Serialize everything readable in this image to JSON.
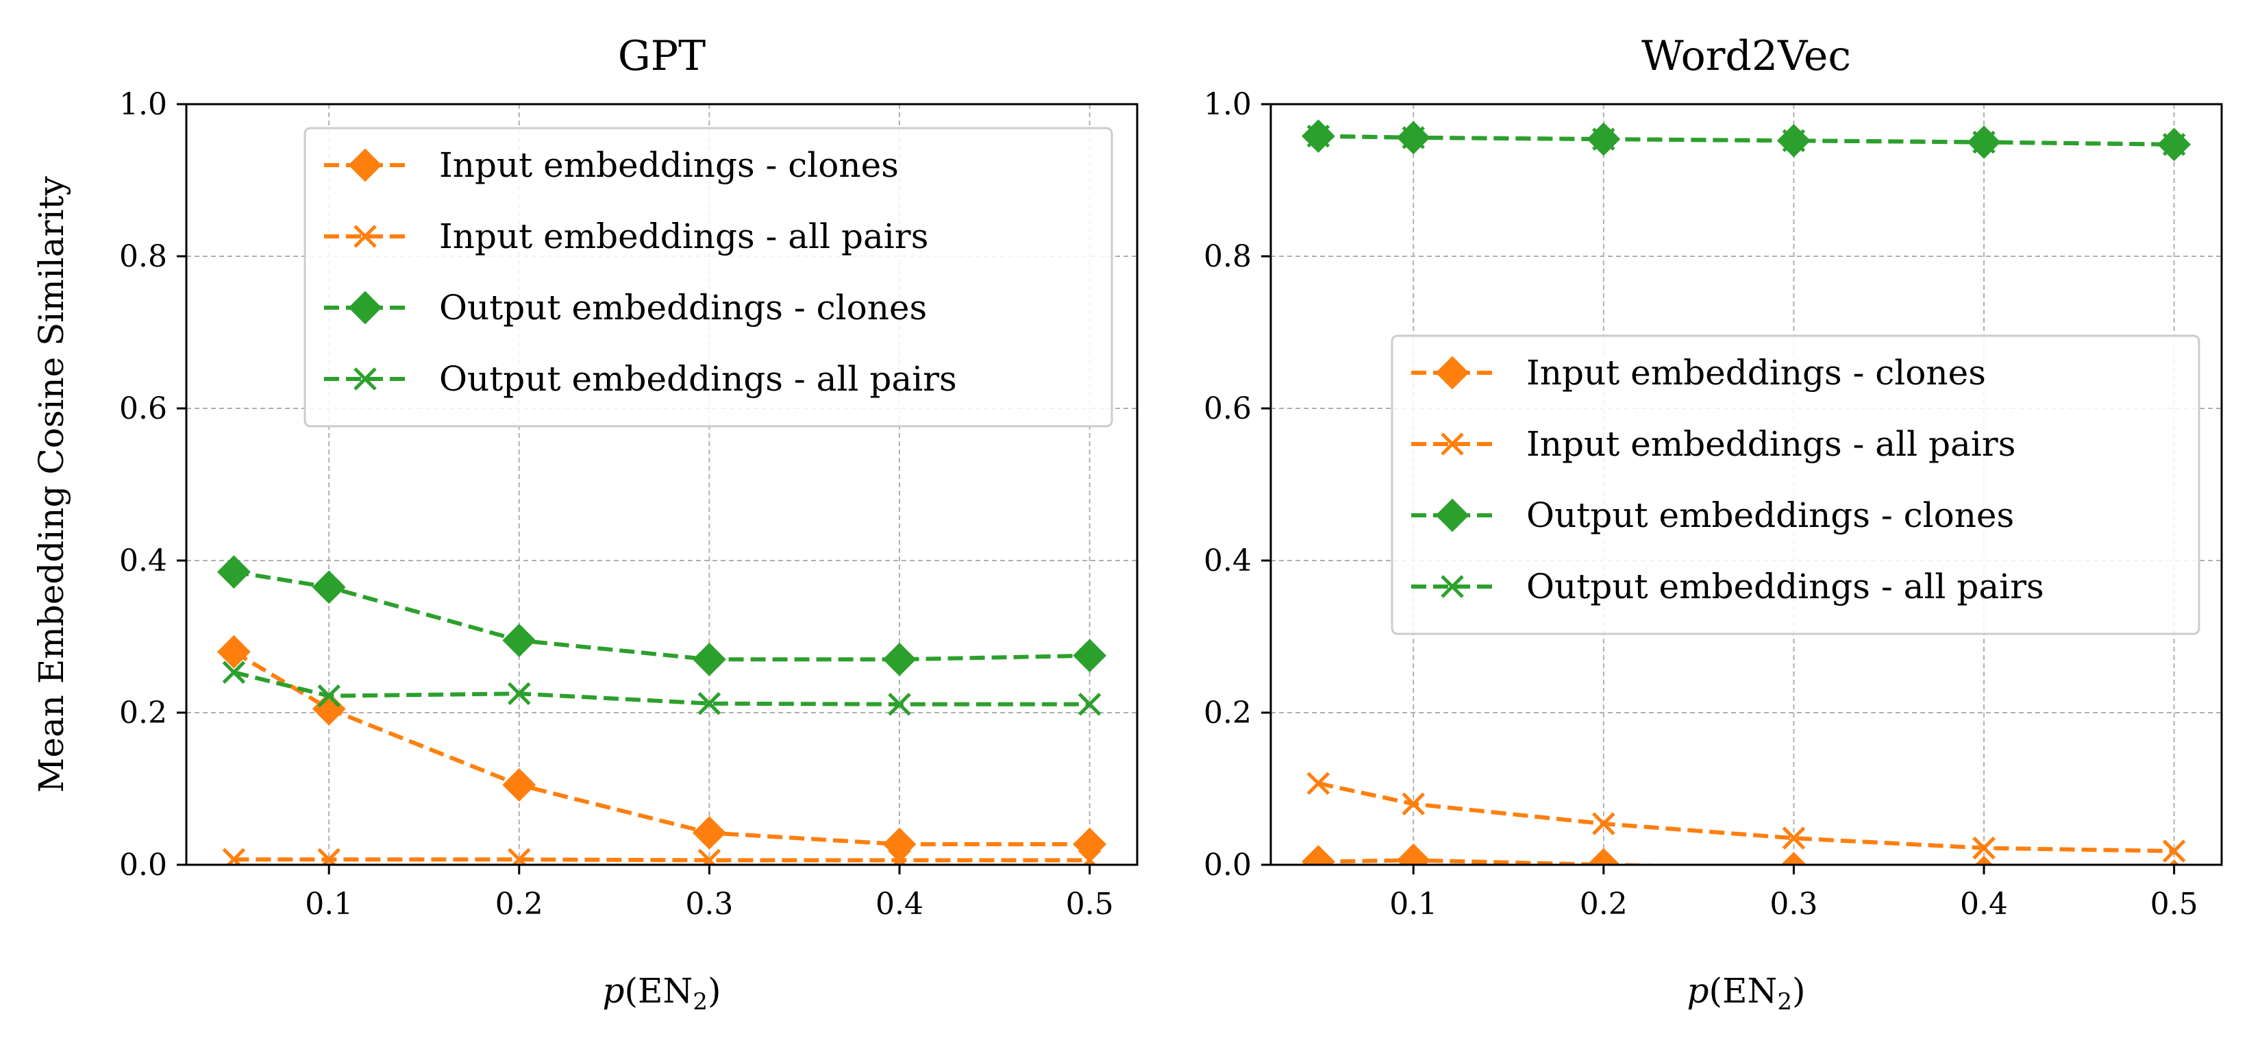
{
  "colors": {
    "orange": "#ff7f0e",
    "green": "#2ca02c"
  },
  "chart_data": [
    {
      "type": "line",
      "title": "GPT",
      "xlabel": "p(EN2)",
      "ylabel": "Mean Embedding Cosine Similarity",
      "x": [
        0.05,
        0.1,
        0.2,
        0.3,
        0.4,
        0.5
      ],
      "xlim": [
        0.025,
        0.525
      ],
      "ylim": [
        0.0,
        1.0
      ],
      "xticks": [
        0.1,
        0.2,
        0.3,
        0.4,
        0.5
      ],
      "xtick_labels": [
        "0.1",
        "0.2",
        "0.3",
        "0.4",
        "0.5"
      ],
      "yticks": [
        0.0,
        0.2,
        0.4,
        0.6,
        0.8,
        1.0
      ],
      "ytick_labels": [
        "0.0",
        "0.2",
        "0.4",
        "0.6",
        "0.8",
        "1.0"
      ],
      "grid": true,
      "legend_position": "upper-right",
      "series": [
        {
          "name": "Input embeddings - clones",
          "color": "orange",
          "marker": "diamond",
          "values": [
            0.28,
            0.205,
            0.105,
            0.042,
            0.027,
            0.027
          ]
        },
        {
          "name": "Input embeddings - all pairs",
          "color": "orange",
          "marker": "x",
          "values": [
            0.007,
            0.007,
            0.007,
            0.006,
            0.006,
            0.006
          ]
        },
        {
          "name": "Output embeddings - clones",
          "color": "green",
          "marker": "diamond",
          "values": [
            0.385,
            0.365,
            0.295,
            0.27,
            0.27,
            0.275
          ]
        },
        {
          "name": "Output embeddings - all pairs",
          "color": "green",
          "marker": "x",
          "values": [
            0.253,
            0.222,
            0.225,
            0.212,
            0.211,
            0.211
          ]
        }
      ]
    },
    {
      "type": "line",
      "title": "Word2Vec",
      "xlabel": "p(EN2)",
      "ylabel": "",
      "x": [
        0.05,
        0.1,
        0.2,
        0.3,
        0.4,
        0.5
      ],
      "xlim": [
        0.025,
        0.525
      ],
      "ylim": [
        0.0,
        1.0
      ],
      "xticks": [
        0.1,
        0.2,
        0.3,
        0.4,
        0.5
      ],
      "xtick_labels": [
        "0.1",
        "0.2",
        "0.3",
        "0.4",
        "0.5"
      ],
      "yticks": [
        0.0,
        0.2,
        0.4,
        0.6,
        0.8,
        1.0
      ],
      "ytick_labels": [
        "0.0",
        "0.2",
        "0.4",
        "0.6",
        "0.8",
        "1.0"
      ],
      "grid": true,
      "legend_position": "center-right",
      "series": [
        {
          "name": "Input embeddings - clones",
          "color": "orange",
          "marker": "diamond",
          "values": [
            0.004,
            0.006,
            0.0,
            -0.005,
            -0.01,
            -0.015
          ]
        },
        {
          "name": "Input embeddings - all pairs",
          "color": "orange",
          "marker": "x",
          "values": [
            0.107,
            0.08,
            0.054,
            0.035,
            0.022,
            0.018
          ]
        },
        {
          "name": "Output embeddings - clones",
          "color": "green",
          "marker": "diamond",
          "values": [
            0.958,
            0.956,
            0.954,
            0.952,
            0.95,
            0.947
          ]
        },
        {
          "name": "Output embeddings - all pairs",
          "color": "green",
          "marker": "x",
          "values": [
            0.958,
            0.956,
            0.954,
            0.952,
            0.95,
            0.947
          ]
        }
      ]
    }
  ]
}
